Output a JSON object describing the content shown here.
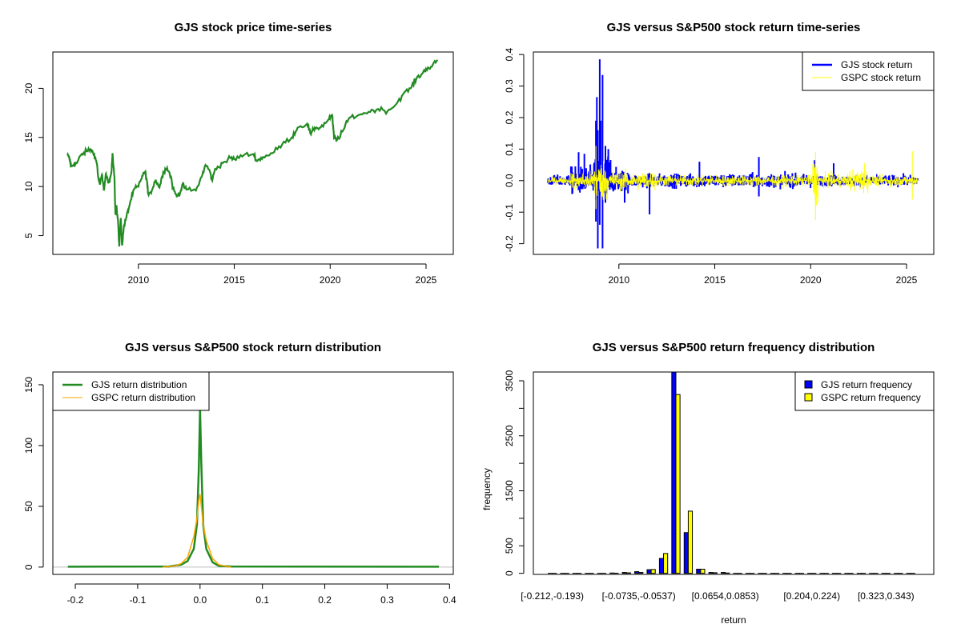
{
  "chart_data": [
    {
      "type": "line",
      "title": "GJS stock price time-series",
      "xlabel": "",
      "ylabel": "",
      "xlim": [
        2005.54,
        2026.42
      ],
      "ylim": [
        3.09,
        23.7
      ],
      "xticks": [
        2010,
        2015,
        2020,
        2025
      ],
      "yticks": [
        5,
        10,
        15,
        20
      ],
      "color": "#228B22",
      "series": [
        {
          "name": "GJS",
          "points": [
            [
              2006.3,
              13.2
            ],
            [
              2006.4,
              12.9
            ],
            [
              2006.5,
              12.0
            ],
            [
              2006.65,
              12.3
            ],
            [
              2006.8,
              12.4
            ],
            [
              2007.0,
              13.2
            ],
            [
              2007.3,
              13.6
            ],
            [
              2007.5,
              13.8
            ],
            [
              2007.7,
              13.3
            ],
            [
              2007.85,
              12.2
            ],
            [
              2007.9,
              11.0
            ],
            [
              2008.0,
              10.2
            ],
            [
              2008.1,
              11.2
            ],
            [
              2008.2,
              9.6
            ],
            [
              2008.3,
              11.3
            ],
            [
              2008.35,
              10.8
            ],
            [
              2008.5,
              10.4
            ],
            [
              2008.6,
              11.6
            ],
            [
              2008.65,
              13.4
            ],
            [
              2008.75,
              11.0
            ],
            [
              2008.8,
              7.2
            ],
            [
              2008.85,
              8.1
            ],
            [
              2008.95,
              6.0
            ],
            [
              2009.0,
              3.9
            ],
            [
              2009.08,
              6.8
            ],
            [
              2009.15,
              4.0
            ],
            [
              2009.25,
              6.0
            ],
            [
              2009.35,
              6.7
            ],
            [
              2009.5,
              7.8
            ],
            [
              2009.6,
              8.6
            ],
            [
              2009.8,
              9.8
            ],
            [
              2010.0,
              10.0
            ],
            [
              2010.2,
              11.1
            ],
            [
              2010.35,
              11.5
            ],
            [
              2010.45,
              10.5
            ],
            [
              2010.5,
              9.3
            ],
            [
              2010.7,
              9.6
            ],
            [
              2010.9,
              10.7
            ],
            [
              2011.1,
              9.9
            ],
            [
              2011.3,
              11.5
            ],
            [
              2011.5,
              11.9
            ],
            [
              2011.7,
              11.0
            ],
            [
              2011.8,
              9.8
            ],
            [
              2012.0,
              9.0
            ],
            [
              2012.2,
              9.5
            ],
            [
              2012.3,
              10.2
            ],
            [
              2012.5,
              9.7
            ],
            [
              2013.0,
              9.6
            ],
            [
              2013.3,
              11.0
            ],
            [
              2013.5,
              12.2
            ],
            [
              2013.7,
              11.7
            ],
            [
              2013.85,
              10.6
            ],
            [
              2014.0,
              11.8
            ],
            [
              2014.4,
              12.4
            ],
            [
              2014.8,
              12.9
            ],
            [
              2015.0,
              12.8
            ],
            [
              2015.5,
              13.2
            ],
            [
              2016.0,
              13.3
            ],
            [
              2016.2,
              12.6
            ],
            [
              2016.5,
              13.0
            ],
            [
              2017.0,
              13.4
            ],
            [
              2017.5,
              14.3
            ],
            [
              2018.0,
              15.0
            ],
            [
              2018.3,
              16.0
            ],
            [
              2018.8,
              16.4
            ],
            [
              2019.0,
              15.3
            ],
            [
              2019.2,
              16.0
            ],
            [
              2019.5,
              16.0
            ],
            [
              2019.9,
              16.8
            ],
            [
              2020.1,
              17.3
            ],
            [
              2020.2,
              15.0
            ],
            [
              2020.35,
              14.7
            ],
            [
              2020.7,
              15.8
            ],
            [
              2021.0,
              17.0
            ],
            [
              2021.5,
              17.3
            ],
            [
              2022.0,
              17.6
            ],
            [
              2022.5,
              17.9
            ],
            [
              2023.0,
              17.7
            ],
            [
              2023.4,
              18.3
            ],
            [
              2023.8,
              19.4
            ],
            [
              2024.2,
              20.0
            ],
            [
              2024.5,
              21.0
            ],
            [
              2024.8,
              21.5
            ],
            [
              2025.0,
              22.0
            ],
            [
              2025.3,
              22.2
            ],
            [
              2025.6,
              22.9
            ]
          ]
        }
      ]
    },
    {
      "type": "line",
      "title": "GJS versus S&P500 stock return time-series",
      "xlim": [
        2005.54,
        2026.42
      ],
      "ylim": [
        -0.234,
        0.408
      ],
      "xticks": [
        2010,
        2015,
        2020,
        2025
      ],
      "yticks": [
        "-0.2",
        "-0.1",
        "0.0",
        "0.1",
        "0.2",
        "0.3",
        "0.4"
      ],
      "legend": {
        "placement": "top-right",
        "entries": [
          {
            "label": "GJS stock return",
            "color": "#0000FF"
          },
          {
            "label": "GSPC stock return",
            "color": "#FFFF00"
          }
        ]
      },
      "series": [
        {
          "name": "GJS",
          "color": "#0000FF",
          "volatility": [
            [
              2006.3,
              2007.5,
              0.012
            ],
            [
              2007.5,
              2008.7,
              0.03
            ],
            [
              2008.7,
              2009.6,
              0.06
            ],
            [
              2009.6,
              2010.5,
              0.025
            ],
            [
              2010.5,
              2020.0,
              0.015
            ],
            [
              2020.0,
              2025.6,
              0.012
            ]
          ],
          "spikes": [
            [
              2007.9,
              0.09
            ],
            [
              2008.2,
              0.085
            ],
            [
              2008.8,
              0.19
            ],
            [
              2008.85,
              0.265
            ],
            [
              2008.9,
              0.16
            ],
            [
              2009.0,
              0.385
            ],
            [
              2009.05,
              0.19
            ],
            [
              2009.15,
              0.335
            ],
            [
              2009.3,
              0.11
            ],
            [
              2009.45,
              0.1
            ],
            [
              2008.8,
              -0.13
            ],
            [
              2008.9,
              -0.215
            ],
            [
              2009.0,
              -0.14
            ],
            [
              2009.15,
              -0.215
            ],
            [
              2009.3,
              -0.07
            ],
            [
              2010.3,
              -0.07
            ],
            [
              2011.6,
              -0.107
            ],
            [
              2014.2,
              0.06
            ],
            [
              2017.3,
              0.075
            ],
            [
              2017.3,
              -0.05
            ],
            [
              2020.2,
              0.065
            ],
            [
              2021.2,
              0.055
            ]
          ]
        },
        {
          "name": "GSPC",
          "color": "#FFFF00",
          "volatility": [
            [
              2006.3,
              2007.5,
              0.008
            ],
            [
              2007.5,
              2008.7,
              0.02
            ],
            [
              2008.7,
              2009.4,
              0.045
            ],
            [
              2009.4,
              2012.0,
              0.02
            ],
            [
              2012.0,
              2020.1,
              0.012
            ],
            [
              2020.1,
              2020.4,
              0.05
            ],
            [
              2020.4,
              2022.0,
              0.015
            ],
            [
              2022.0,
              2023.0,
              0.025
            ],
            [
              2023.0,
              2025.6,
              0.012
            ]
          ],
          "spikes": [
            [
              2008.8,
              0.11
            ],
            [
              2008.8,
              -0.09
            ],
            [
              2020.25,
              0.09
            ],
            [
              2020.25,
              -0.125
            ],
            [
              2022.8,
              0.055
            ],
            [
              2025.3,
              0.093
            ],
            [
              2025.3,
              -0.06
            ]
          ]
        }
      ]
    },
    {
      "type": "line",
      "title": "GJS versus S&P500 stock return distribution",
      "xlim": [
        -0.236,
        0.406
      ],
      "ylim": [
        -6,
        160.5
      ],
      "xticks": [
        "-0.2",
        "-0.1",
        "0.0",
        "0.1",
        "0.2",
        "0.3",
        "0.4"
      ],
      "yticks": [
        "0",
        "50",
        "100",
        "150"
      ],
      "baseline_color": "#BEBEBE",
      "legend": {
        "placement": "top-left",
        "entries": [
          {
            "label": "GJS return distribution",
            "color": "#228B22"
          },
          {
            "label": "GSPC return distribution",
            "color": "#FFA500"
          }
        ]
      },
      "series": [
        {
          "name": "GJS",
          "color": "#228B22",
          "points": [
            [
              -0.212,
              0.3
            ],
            [
              -0.05,
              0.5
            ],
            [
              -0.03,
              2
            ],
            [
              -0.02,
              5
            ],
            [
              -0.01,
              15
            ],
            [
              -0.005,
              35
            ],
            [
              -0.002,
              80
            ],
            [
              0,
              130
            ],
            [
              0.002,
              85
            ],
            [
              0.005,
              35
            ],
            [
              0.01,
              15
            ],
            [
              0.02,
              4
            ],
            [
              0.03,
              1
            ],
            [
              0.05,
              0.5
            ],
            [
              0.383,
              0.3
            ]
          ]
        },
        {
          "name": "GSPC",
          "color": "#FFA500",
          "points": [
            [
              -0.06,
              0
            ],
            [
              -0.04,
              1
            ],
            [
              -0.03,
              3
            ],
            [
              -0.02,
              8
            ],
            [
              -0.01,
              25
            ],
            [
              -0.005,
              40
            ],
            [
              -0.002,
              55
            ],
            [
              0,
              60
            ],
            [
              0.002,
              50
            ],
            [
              0.005,
              35
            ],
            [
              0.01,
              22
            ],
            [
              0.02,
              7
            ],
            [
              0.03,
              2
            ],
            [
              0.045,
              0.3
            ],
            [
              0.05,
              0
            ]
          ]
        }
      ]
    },
    {
      "type": "bar",
      "title": "GJS versus S&P500 return frequency distribution",
      "xlabel": "return",
      "ylabel": "frequency",
      "ylim": [
        -20,
        3660
      ],
      "yticks": [
        "0",
        "500",
        "1500",
        "2500",
        "3500"
      ],
      "category_labels_shown": [
        [
          0,
          "[-0.212,-0.193)"
        ],
        [
          7,
          "[-0.0735,-0.0537)"
        ],
        [
          14,
          "[0.0654,0.0853)"
        ],
        [
          21,
          "[0.204,0.224)"
        ],
        [
          27,
          "[0.323,0.343)"
        ]
      ],
      "bin_count": 30,
      "legend": {
        "placement": "top-right",
        "entries": [
          {
            "label": "GJS return frequency",
            "color": "#0000FF"
          },
          {
            "label": "GSPC return frequency",
            "color": "#FFFF00"
          }
        ]
      },
      "series": [
        {
          "name": "GJS return frequency",
          "color": "#0000FF",
          "values": [
            0,
            0,
            0,
            0,
            0,
            5,
            15,
            30,
            65,
            270,
            3700,
            740,
            75,
            15,
            15,
            0,
            0,
            0,
            0,
            0,
            0,
            0,
            0,
            0,
            0,
            0,
            0,
            0,
            0,
            0
          ]
        },
        {
          "name": "GSPC return frequency",
          "color": "#FFFF00",
          "values": [
            0,
            0,
            0,
            0,
            0,
            2,
            8,
            15,
            70,
            360,
            3250,
            1130,
            75,
            10,
            5,
            0,
            0,
            0,
            0,
            0,
            0,
            0,
            0,
            0,
            0,
            0,
            0,
            0,
            0,
            0
          ]
        }
      ]
    }
  ]
}
